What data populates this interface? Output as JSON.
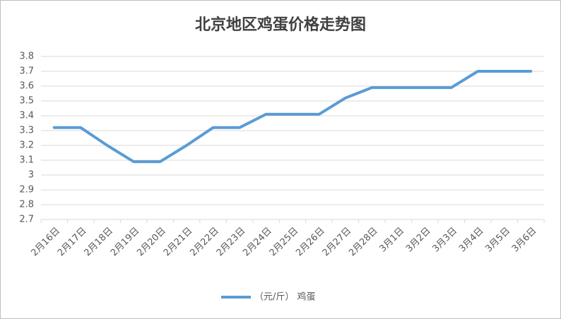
{
  "chart_data": {
    "type": "line",
    "title": "北京地区鸡蛋价格走势图",
    "categories": [
      "2月16日",
      "2月17日",
      "2月18日",
      "2月19日",
      "2月20日",
      "2月21日",
      "2月22日",
      "2月23日",
      "2月24日",
      "2月25日",
      "2月26日",
      "2月27日",
      "2月28日",
      "3月1日",
      "3月2日",
      "3月3日",
      "3月4日",
      "3月5日",
      "3月6日"
    ],
    "series": [
      {
        "name": "（元/斤） 鸡蛋",
        "color": "#5b9bd5",
        "values": [
          3.32,
          3.32,
          3.2,
          3.09,
          3.09,
          3.2,
          3.32,
          3.32,
          3.41,
          3.41,
          3.41,
          3.52,
          3.59,
          3.59,
          3.59,
          3.59,
          3.7,
          3.7,
          3.7
        ]
      }
    ],
    "ylim": [
      2.7,
      3.8
    ],
    "yticks": [
      2.7,
      2.8,
      2.9,
      3,
      3.1,
      3.2,
      3.3,
      3.4,
      3.5,
      3.6,
      3.7,
      3.8
    ],
    "grid": true,
    "legend": "bottom"
  }
}
